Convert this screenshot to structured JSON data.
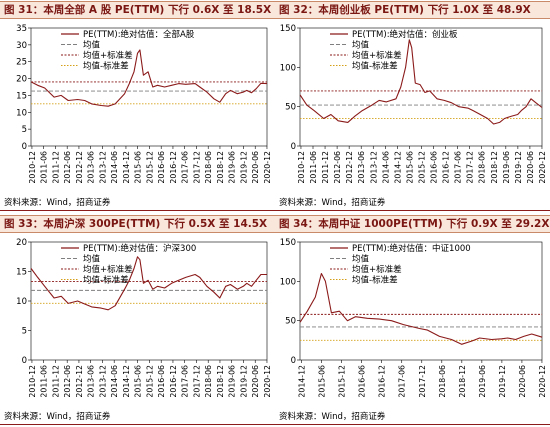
{
  "sources": "资料来源：Wind，招商证券",
  "colors": {
    "header_bg": "#fae7dc",
    "header_text": "#7a1713",
    "pe_line": "#8b1a1a",
    "mean_line": "#7f7f7f",
    "plus_sd_line": "#8b1a1a",
    "minus_sd_line": "#d4a017"
  },
  "panels": [
    {
      "figure": "图 31：",
      "title": "本周全部 A 股 PE(TTM) 下行 0.6X 至 18.5X",
      "legend": [
        "PE(TTM):绝对估值：全部A股",
        "均值",
        "均值+标准差",
        "均值-标准差"
      ],
      "chart_data": {
        "type": "line",
        "ylim": [
          0,
          35
        ],
        "yticks": [
          0,
          5,
          10,
          15,
          20,
          25,
          30,
          35
        ],
        "xlim": [
          2010.917,
          2020.958
        ],
        "xticks": [
          "2010-12",
          "2011-06",
          "2011-12",
          "2012-06",
          "2012-12",
          "2013-06",
          "2013-12",
          "2014-06",
          "2014-12",
          "2015-06",
          "2015-12",
          "2016-06",
          "2016-12",
          "2017-06",
          "2017-12",
          "2018-06",
          "2018-12",
          "2019-06",
          "2019-12",
          "2020-06",
          "2020-12"
        ],
        "reference_lines": {
          "mean": 16.3,
          "plus_sd": 19.0,
          "minus_sd": 12.5
        },
        "series": [
          {
            "name": "PE(TTM):绝对估值：全部A股",
            "x": [
              2010.92,
              2011.2,
              2011.5,
              2011.9,
              2012.2,
              2012.5,
              2012.9,
              2013.2,
              2013.5,
              2013.9,
              2014.2,
              2014.5,
              2014.9,
              2015.1,
              2015.3,
              2015.45,
              2015.55,
              2015.7,
              2015.9,
              2016.1,
              2016.3,
              2016.6,
              2016.9,
              2017.2,
              2017.5,
              2017.9,
              2018.1,
              2018.4,
              2018.7,
              2018.95,
              2019.2,
              2019.4,
              2019.7,
              2019.95,
              2020.1,
              2020.3,
              2020.5,
              2020.7,
              2020.96
            ],
            "y": [
              19.0,
              18.0,
              17.2,
              14.5,
              15.0,
              13.5,
              13.8,
              13.5,
              12.5,
              12.0,
              11.8,
              12.5,
              15.5,
              18.5,
              22.0,
              27.5,
              28.5,
              21.0,
              22.0,
              17.5,
              18.0,
              17.5,
              18.0,
              18.5,
              18.3,
              18.5,
              17.5,
              16.0,
              14.0,
              13.0,
              15.5,
              16.5,
              15.5,
              16.0,
              16.5,
              15.8,
              17.0,
              18.6,
              18.5
            ]
          }
        ]
      }
    },
    {
      "figure": "图 32：",
      "title": "本周创业板 PE(TTM) 下行 1.0X 至 48.9X",
      "legend": [
        "PE(TTM):绝对估值：创业板",
        "均值",
        "均值+标准差",
        "均值-标准差"
      ],
      "chart_data": {
        "type": "line",
        "ylim": [
          0,
          150
        ],
        "yticks": [
          0,
          50,
          100,
          150
        ],
        "xlim": [
          2010.917,
          2020.958
        ],
        "xticks": [
          "2010-12",
          "2011-06",
          "2011-12",
          "2012-06",
          "2012-12",
          "2013-06",
          "2013-12",
          "2014-06",
          "2014-12",
          "2015-06",
          "2015-12",
          "2016-06",
          "2016-12",
          "2017-06",
          "2017-12",
          "2018-06",
          "2018-12",
          "2019-06",
          "2019-12",
          "2020-06",
          "2020-12"
        ],
        "reference_lines": {
          "mean": 52,
          "plus_sd": 70,
          "minus_sd": 35
        },
        "series": [
          {
            "name": "PE(TTM):绝对估值：创业板",
            "x": [
              2010.92,
              2011.2,
              2011.5,
              2011.9,
              2012.2,
              2012.5,
              2012.9,
              2013.2,
              2013.5,
              2013.9,
              2014.2,
              2014.5,
              2014.9,
              2015.1,
              2015.3,
              2015.45,
              2015.55,
              2015.7,
              2015.9,
              2016.1,
              2016.3,
              2016.6,
              2016.9,
              2017.2,
              2017.5,
              2017.9,
              2018.1,
              2018.4,
              2018.7,
              2018.95,
              2019.2,
              2019.4,
              2019.7,
              2019.95,
              2020.1,
              2020.3,
              2020.5,
              2020.7,
              2020.96
            ],
            "y": [
              65,
              52,
              45,
              35,
              40,
              32,
              30,
              38,
              45,
              52,
              58,
              56,
              60,
              75,
              100,
              135,
              125,
              80,
              78,
              68,
              70,
              60,
              58,
              55,
              50,
              48,
              45,
              40,
              35,
              28,
              30,
              35,
              38,
              40,
              45,
              50,
              60,
              55,
              49
            ]
          }
        ]
      }
    },
    {
      "figure": "图 33：",
      "title": "本周沪深 300PE(TTM) 下行 0.5X 至 14.5X",
      "legend": [
        "PE(TTM):绝对估值：沪深300",
        "均值",
        "均值+标准差",
        "均值-标准差"
      ],
      "chart_data": {
        "type": "line",
        "ylim": [
          0,
          20
        ],
        "yticks": [
          0,
          5,
          10,
          15,
          20
        ],
        "xlim": [
          2010.917,
          2020.958
        ],
        "xticks": [
          "2010-12",
          "2011-06",
          "2011-12",
          "2012-06",
          "2012-12",
          "2013-06",
          "2013-12",
          "2014-06",
          "2014-12",
          "2015-06",
          "2015-12",
          "2016-06",
          "2016-12",
          "2017-06",
          "2017-12",
          "2018-06",
          "2018-12",
          "2019-06",
          "2019-12",
          "2020-06",
          "2020-12"
        ],
        "reference_lines": {
          "mean": 11.8,
          "plus_sd": 13.3,
          "minus_sd": 9.6
        },
        "series": [
          {
            "name": "PE(TTM):绝对估值：沪深300",
            "x": [
              2010.92,
              2011.2,
              2011.5,
              2011.9,
              2012.2,
              2012.5,
              2012.9,
              2013.2,
              2013.5,
              2013.9,
              2014.2,
              2014.5,
              2014.9,
              2015.1,
              2015.3,
              2015.45,
              2015.55,
              2015.7,
              2015.9,
              2016.1,
              2016.3,
              2016.6,
              2016.9,
              2017.2,
              2017.5,
              2017.9,
              2018.1,
              2018.4,
              2018.7,
              2018.95,
              2019.2,
              2019.4,
              2019.7,
              2019.95,
              2020.1,
              2020.3,
              2020.5,
              2020.7,
              2020.96
            ],
            "y": [
              15.5,
              14.0,
              12.5,
              10.5,
              10.8,
              9.6,
              10.0,
              9.5,
              9.0,
              8.8,
              8.5,
              9.2,
              12.0,
              13.5,
              15.5,
              17.5,
              17.0,
              13.0,
              13.5,
              12.0,
              12.5,
              12.2,
              13.0,
              13.5,
              14.0,
              14.5,
              14.0,
              12.5,
              11.5,
              10.5,
              12.5,
              12.8,
              12.0,
              12.5,
              13.0,
              12.5,
              13.5,
              14.5,
              14.5
            ]
          }
        ]
      }
    },
    {
      "figure": "图 34：",
      "title": "本周中证 1000PE(TTM) 下行 0.9X 至 29.2X",
      "legend": [
        "PE(TTM):绝对估值：中证1000",
        "均值",
        "均值+标准差",
        "均值-标准差"
      ],
      "chart_data": {
        "type": "line",
        "ylim": [
          0,
          150
        ],
        "yticks": [
          0,
          50,
          100,
          150
        ],
        "xlim": [
          2014.917,
          2020.958
        ],
        "xticks": [
          "2014-12",
          "2015-06",
          "2015-12",
          "2016-06",
          "2016-12",
          "2017-06",
          "2017-12",
          "2018-06",
          "2018-12",
          "2019-06",
          "2019-12",
          "2020-06",
          "2020-12"
        ],
        "reference_lines": {
          "mean": 42,
          "plus_sd": 58,
          "minus_sd": 25
        },
        "series": [
          {
            "name": "PE(TTM):绝对估值：中证1000",
            "x": [
              2014.92,
              2015.1,
              2015.3,
              2015.45,
              2015.55,
              2015.7,
              2015.9,
              2016.1,
              2016.3,
              2016.6,
              2016.9,
              2017.2,
              2017.5,
              2017.9,
              2018.1,
              2018.4,
              2018.7,
              2018.95,
              2019.2,
              2019.4,
              2019.7,
              2019.95,
              2020.1,
              2020.3,
              2020.5,
              2020.7,
              2020.96
            ],
            "y": [
              48,
              62,
              80,
              110,
              100,
              60,
              62,
              50,
              55,
              53,
              52,
              50,
              45,
              40,
              38,
              30,
              26,
              20,
              24,
              28,
              26,
              27,
              28,
              26,
              30,
              33,
              29
            ]
          }
        ]
      }
    }
  ]
}
